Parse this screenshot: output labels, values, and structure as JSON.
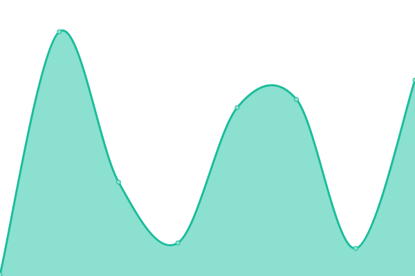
{
  "chart_data": {
    "type": "area",
    "x": [
      0,
      1,
      2,
      3,
      4,
      5,
      6,
      7
    ],
    "values": [
      0.5,
      88.5,
      34,
      12,
      61,
      64,
      10,
      71
    ],
    "ylim": [
      0,
      100
    ],
    "grid": false,
    "smooth": true,
    "colors": {
      "line": "#1abc9c",
      "fill": "#8be0cf",
      "point_fill": "#8be0cf"
    }
  }
}
